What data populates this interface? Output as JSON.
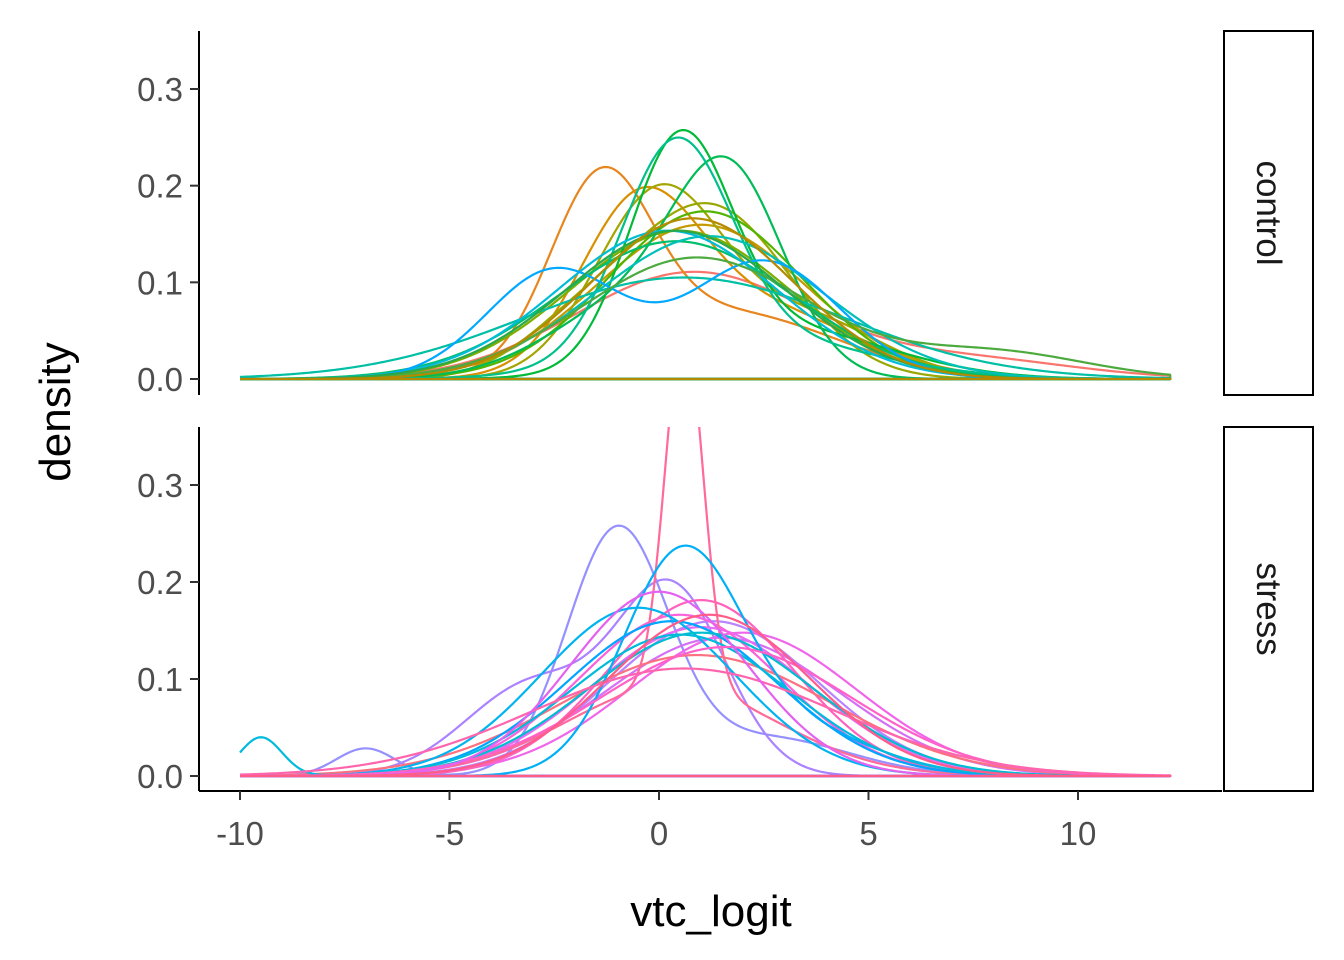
{
  "chart_data": {
    "type": "line",
    "subtype": "faceted density curves (one per subject)",
    "title": "",
    "xlabel": "vtc_logit",
    "ylabel": "density",
    "xlim": [
      -10,
      12.2
    ],
    "ylim": [
      0,
      0.36
    ],
    "x_ticks": [
      "-10",
      "-5",
      "0",
      "5",
      "10"
    ],
    "y_ticks": [
      "0.0",
      "0.1",
      "0.2",
      "0.3"
    ],
    "grid": false,
    "legend": "none",
    "facets": [
      {
        "label": "control",
        "series": [
          {
            "color": "#f8766d",
            "components": [
              [
                0.8,
                2.8,
                0.88
              ]
            ],
            "tail": [
              0.12,
              7.5,
              2.5
            ]
          },
          {
            "color": "#e7851e",
            "components": [
              [
                -1.4,
                1.2,
                0.55
              ],
              [
                1.6,
                2.6,
                0.45
              ]
            ]
          },
          {
            "color": "#d89000",
            "components": [
              [
                -0.5,
                1.4,
                0.55
              ],
              [
                2.2,
                2.4,
                0.45
              ]
            ]
          },
          {
            "color": "#c49a00",
            "components": [
              [
                1.0,
                2.5,
                1.0
              ]
            ]
          },
          {
            "color": "#a3a500",
            "components": [
              [
                0.0,
                1.5,
                0.72
              ],
              [
                3.5,
                1.8,
                0.28
              ]
            ]
          },
          {
            "color": "#99a800",
            "components": [
              [
                1.2,
                1.9,
                0.85
              ],
              [
                -2.0,
                1.4,
                0.15
              ]
            ]
          },
          {
            "color": "#7cae00",
            "components": [
              [
                0.5,
                2.6,
                1.0
              ]
            ]
          },
          {
            "color": "#53b400",
            "components": [
              [
                1.1,
                2.3,
                1.0
              ]
            ]
          },
          {
            "color": "#00ba38",
            "components": [
              [
                0.5,
                1.2,
                0.68
              ],
              [
                3.0,
                2.5,
                0.32
              ]
            ]
          },
          {
            "color": "#00bc56",
            "components": [
              [
                1.7,
                1.3,
                0.6
              ],
              [
                -0.5,
                2.0,
                0.4
              ]
            ]
          },
          {
            "color": "#00be6c",
            "components": [
              [
                0.4,
                2.8,
                1.0
              ]
            ]
          },
          {
            "color": "#00c08b",
            "components": [
              [
                0.4,
                1.3,
                0.7
              ],
              [
                2.2,
                2.8,
                0.3
              ]
            ]
          },
          {
            "color": "#00bfa5",
            "components": [
              [
                0.6,
                3.8,
                1.0
              ]
            ]
          },
          {
            "color": "#00c0b8",
            "components": [
              [
                1.2,
                2.7,
                1.0
              ]
            ]
          },
          {
            "color": "#00bcd8",
            "components": [
              [
                0.2,
                2.6,
                1.0
              ]
            ]
          },
          {
            "color": "#00a9ff",
            "components": [
              [
                2.5,
                1.8,
                0.55
              ],
              [
                -2.5,
                1.6,
                0.45
              ]
            ]
          },
          {
            "color": "#4daa3f",
            "components": [
              [
                0.9,
                2.7,
                1.0
              ]
            ],
            "tail": [
              0.15,
              8.0,
              2.2
            ]
          },
          {
            "color": "#2aa84a",
            "components": [
              [
                0.4,
                2.6,
                1.0
              ]
            ]
          },
          {
            "color": "#b38a00",
            "components": [
              [
                0.8,
                2.4,
                1.0
              ]
            ]
          }
        ]
      },
      {
        "label": "stress",
        "series": [
          {
            "color": "#9590ff",
            "components": [
              [
                -1.0,
                1.2,
                0.75
              ],
              [
                2.5,
                2.0,
                0.2
              ],
              [
                -7.0,
                0.7,
                0.05
              ]
            ]
          },
          {
            "color": "#ab82ff",
            "components": [
              [
                0.3,
                1.3,
                0.62
              ],
              [
                -3.0,
                1.6,
                0.38
              ]
            ]
          },
          {
            "color": "#b983ff",
            "components": [
              [
                1.3,
                2.5,
                1.0
              ]
            ]
          },
          {
            "color": "#d570f5",
            "components": [
              [
                1.5,
                2.8,
                1.0
              ]
            ]
          },
          {
            "color": "#e76bf3",
            "components": [
              [
                1.0,
                2.6,
                1.0
              ]
            ]
          },
          {
            "color": "#f066ea",
            "components": [
              [
                2.0,
                2.7,
                1.0
              ]
            ]
          },
          {
            "color": "#fa62db",
            "components": [
              [
                0.5,
                2.4,
                1.0
              ]
            ]
          },
          {
            "color": "#ff62bc",
            "components": [
              [
                1.0,
                2.2,
                1.0
              ]
            ]
          },
          {
            "color": "#ff6a98",
            "components": [
              [
                0.6,
                0.45,
                0.42
              ],
              [
                0.3,
                2.5,
                0.58
              ]
            ]
          },
          {
            "color": "#fc717f",
            "components": [
              [
                0.9,
                3.2,
                1.0
              ]
            ]
          },
          {
            "color": "#00b0f6",
            "components": [
              [
                0.5,
                1.4,
                0.75
              ],
              [
                3.0,
                2.0,
                0.25
              ]
            ]
          },
          {
            "color": "#00a5ff",
            "components": [
              [
                0.3,
                2.5,
                1.0
              ]
            ]
          },
          {
            "color": "#00b4ef",
            "components": [
              [
                -0.5,
                2.3,
                1.0
              ]
            ]
          },
          {
            "color": "#00bbdb",
            "components": [
              [
                0.5,
                2.6,
                1.0
              ]
            ],
            "tail": [
              0.05,
              -9.5,
              0.5
            ]
          },
          {
            "color": "#00bdd0",
            "components": [
              [
                1.0,
                2.7,
                1.0
              ]
            ]
          },
          {
            "color": "#ff61c9",
            "components": [
              [
                1.6,
                3.0,
                1.0
              ]
            ]
          },
          {
            "color": "#ff65ad",
            "components": [
              [
                0.6,
                3.6,
                1.0
              ]
            ]
          },
          {
            "color": "#e561f0",
            "components": [
              [
                0.0,
                2.1,
                1.0
              ]
            ]
          },
          {
            "color": "#ff5c8a",
            "components": [
              [
                1.2,
                2.4,
                1.0
              ]
            ]
          }
        ]
      }
    ]
  }
}
